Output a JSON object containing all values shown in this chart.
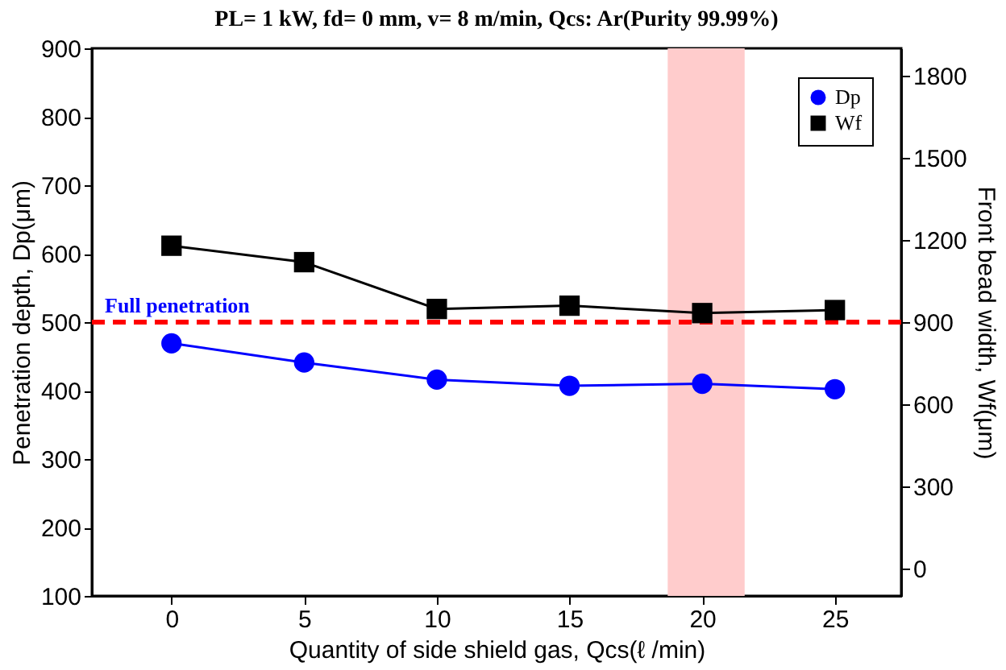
{
  "chart_data": {
    "type": "line",
    "title": "PL= 1 kW,  fd= 0 mm, v= 8 m/min,  Qcs: Ar(Purity 99.99%)",
    "xlabel": "Quantity of side shield gas, Qcs(ℓ /min)",
    "ylabel": "Penetration depth, Dp(μm)",
    "y2label": "Front bead width, Wf(μm)",
    "x": [
      0,
      5,
      10,
      15,
      20,
      25
    ],
    "series": [
      {
        "name": "Dp",
        "color": "#0000ff",
        "marker": "circle",
        "values": [
          469,
          441,
          416,
          407,
          410,
          402
        ]
      },
      {
        "name": "Wf",
        "color": "#000000",
        "marker": "square",
        "axis": "y2",
        "values": [
          1179,
          1119,
          948,
          960,
          933,
          944
        ]
      }
    ],
    "xlim": [
      -3,
      27.5
    ],
    "xticks": [
      0,
      5,
      10,
      15,
      20,
      25
    ],
    "ylim": [
      100,
      900
    ],
    "yticks": [
      100,
      200,
      300,
      400,
      500,
      600,
      700,
      800,
      900
    ],
    "y2lim": [
      -100,
      1900
    ],
    "y2ticks": [
      0,
      300,
      600,
      900,
      1200,
      1500,
      1800
    ],
    "ref_lines": [
      {
        "axis": "y",
        "value": 500,
        "label": "Full penetration",
        "color": "#ff0000",
        "line_style": "dashed"
      }
    ],
    "bands": [
      {
        "axis": "x",
        "from": 18.7,
        "to": 21.6,
        "color": "#ffcccc"
      }
    ],
    "grid": false,
    "legend": "top right",
    "line_style": "solid"
  }
}
